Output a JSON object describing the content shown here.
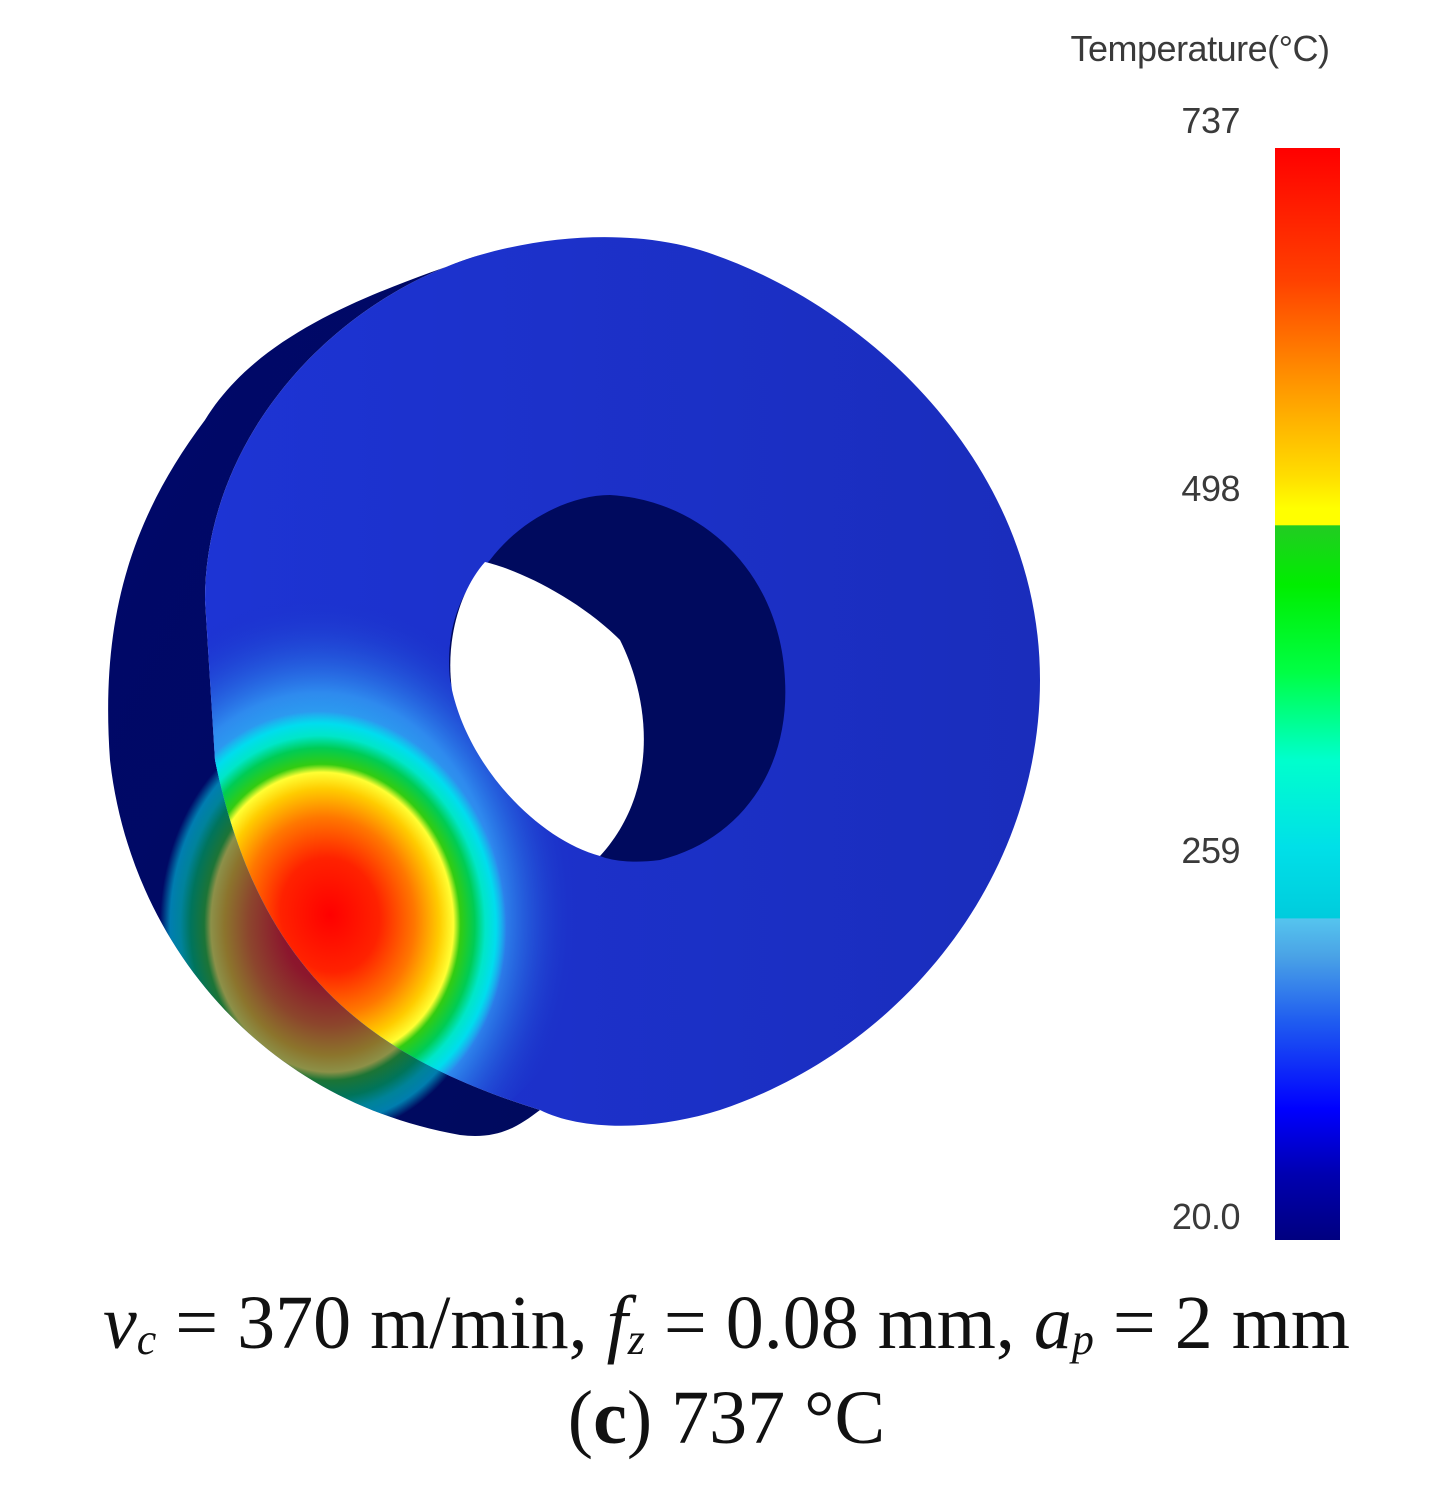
{
  "legend": {
    "title": "Temperature(°C)",
    "ticks": [
      {
        "label": "737",
        "value": 737
      },
      {
        "label": "498",
        "value": 498
      },
      {
        "label": "259",
        "value": 259
      },
      {
        "label": "20.0",
        "value": 20.0
      }
    ],
    "max_value": 737,
    "min_value": 20.0,
    "colormap": [
      "#000080",
      "#0000ff",
      "#4aa3e6",
      "#00e0e0",
      "#00ff00",
      "#ffff00",
      "#ff9900",
      "#ff0000"
    ]
  },
  "caption": {
    "v_symbol": "v",
    "v_sub": "c",
    "v_value": " = 370 m/min, ",
    "f_symbol": "f",
    "f_sub": "z",
    "f_value": " = 0.08 mm, ",
    "a_symbol": "a",
    "a_sub": "p",
    "a_value": " = 2 mm",
    "panel_open": "(",
    "panel_letter": "c",
    "panel_close": ")",
    "panel_text": " 737 °C"
  },
  "colors": {
    "background": "#ffffff",
    "workpiece_face": "#1a2fc8",
    "workpiece_shadow": "#000a5e",
    "hot_spot": "#ff1a00"
  }
}
